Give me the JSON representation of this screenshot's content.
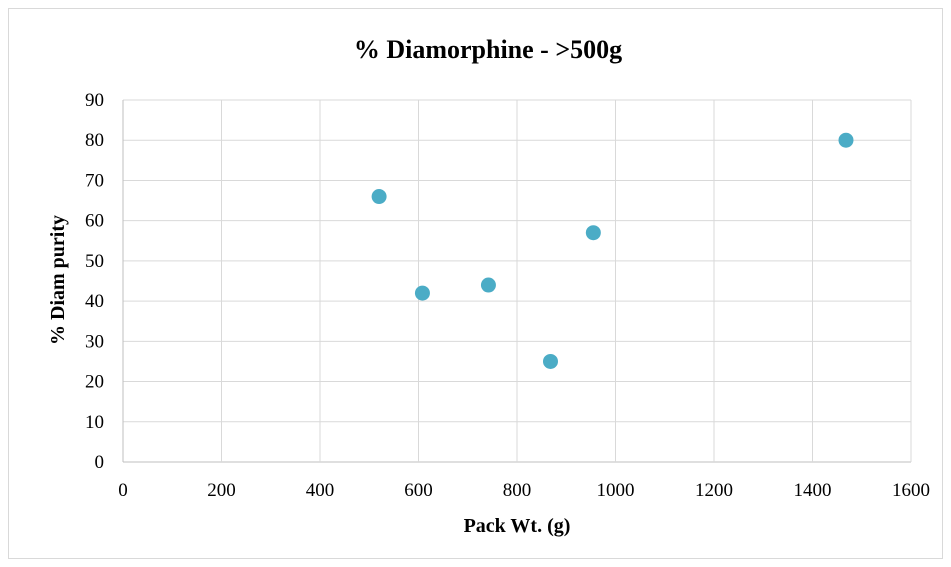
{
  "chart_data": {
    "type": "scatter",
    "title": "% Diamorphine - >500g",
    "xlabel": "Pack Wt. (g)",
    "ylabel": "% Diam purity",
    "xlim": [
      0,
      1600
    ],
    "ylim": [
      0,
      90
    ],
    "x_ticks": [
      "0",
      "200",
      "400",
      "600",
      "800",
      "1000",
      "1200",
      "1400",
      "1600"
    ],
    "y_ticks": [
      "0",
      "10",
      "20",
      "30",
      "40",
      "50",
      "60",
      "70",
      "80",
      "90"
    ],
    "grid": true,
    "legend": "none",
    "marker_color": "#4bacc6",
    "series": [
      {
        "points": [
          {
            "x": 520,
            "y": 66
          },
          {
            "x": 608,
            "y": 42
          },
          {
            "x": 742,
            "y": 44
          },
          {
            "x": 868,
            "y": 25
          },
          {
            "x": 955,
            "y": 57
          },
          {
            "x": 1468,
            "y": 80
          }
        ]
      }
    ]
  }
}
